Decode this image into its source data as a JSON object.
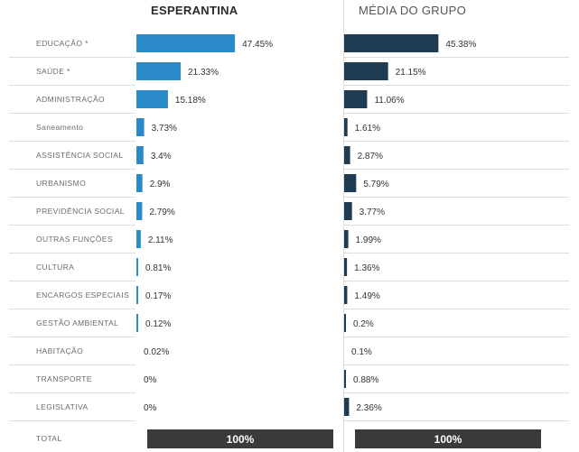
{
  "header": {
    "left": "ESPERANTINA",
    "right": "MÉDIA DO GRUPO"
  },
  "colors": {
    "left_bar": "#2a8ac8",
    "right_bar": "#1f3b52",
    "total_bar": "#3a3a3a",
    "row_line": "#dddddd"
  },
  "chart_data": {
    "type": "bar",
    "orientation": "horizontal",
    "categories": [
      "EDUCAÇÃO *",
      "SAÚDE *",
      "ADMINISTRAÇÃO",
      "Saneamento",
      "ASSISTÊNCIA SOCIAL",
      "URBANISMO",
      "PREVIDÊNCIA SOCIAL",
      "OUTRAS FUNÇÕES",
      "CULTURA",
      "ENCARGOS ESPECIAIS",
      "GESTÃO AMBIENTAL",
      "HABITAÇÃO",
      "TRANSPORTE",
      "LEGISLATIVA"
    ],
    "series": [
      {
        "name": "ESPERANTINA",
        "values": [
          47.45,
          21.33,
          15.18,
          3.73,
          3.4,
          2.9,
          2.79,
          2.11,
          0.81,
          0.17,
          0.12,
          0.02,
          0,
          0
        ],
        "labels": [
          "47.45%",
          "21.33%",
          "15.18%",
          "3.73%",
          "3.4%",
          "2.9%",
          "2.79%",
          "2.11%",
          "0.81%",
          "0.17%",
          "0.12%",
          "0.02%",
          "0%",
          "0%"
        ]
      },
      {
        "name": "MÉDIA DO GRUPO",
        "values": [
          45.38,
          21.15,
          11.06,
          1.61,
          2.87,
          5.79,
          3.77,
          1.99,
          1.36,
          1.49,
          0.2,
          0.1,
          0.88,
          2.36
        ],
        "labels": [
          "45.38%",
          "21.15%",
          "11.06%",
          "1.61%",
          "2.87%",
          "5.79%",
          "3.77%",
          "1.99%",
          "1.36%",
          "1.49%",
          "0.2%",
          "0.1%",
          "0.88%",
          "2.36%"
        ]
      }
    ],
    "total": {
      "label": "TOTAL",
      "left_value": "100%",
      "right_value": "100%"
    }
  }
}
